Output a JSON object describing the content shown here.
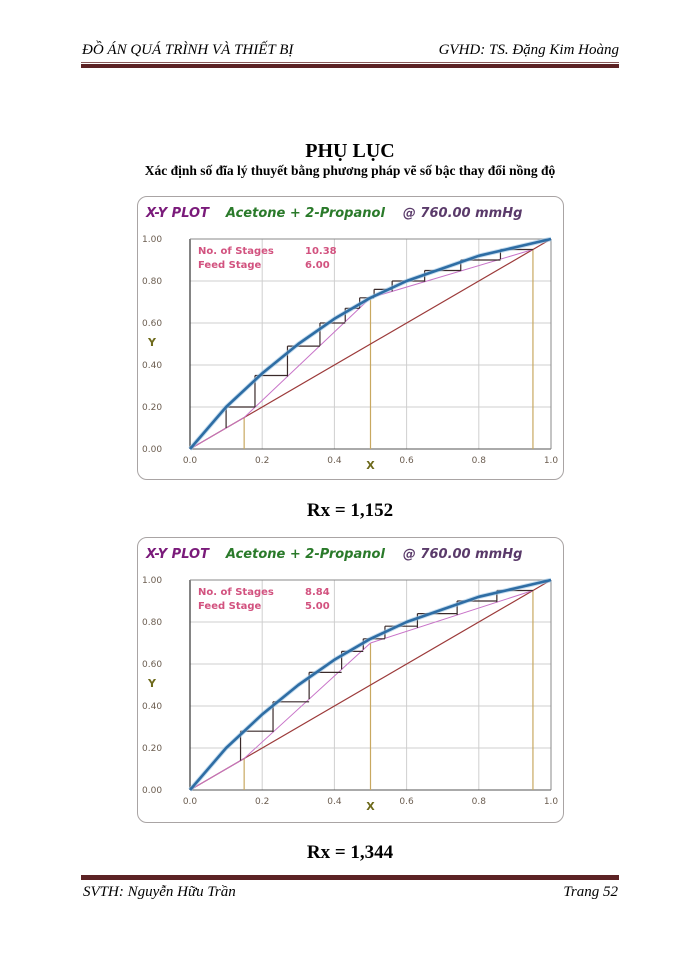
{
  "header": {
    "left": "ĐỒ ÁN QUÁ TRÌNH VÀ THIẾT BỊ",
    "right": "GVHD: TS. Đặng Kim Hoàng"
  },
  "title": "PHỤ LỤC",
  "subtitle": "Xác định số đĩa lý thuyết bằng phương pháp vẽ số bậc thay đổi nồng độ",
  "colors": {
    "equilibrium_curve": "#2e6da4",
    "diagonal": "#9c3a3a",
    "operating_lines": "#c873c8",
    "steps": "#3a2a2a",
    "feed_lines": "#c8a860",
    "title_xy": "#7a1a7a",
    "title_system": "#2a7a2a",
    "title_pressure": "#5a3a6a",
    "info_text": "#d2527f",
    "header_rule": "#5c2224"
  },
  "charts": [
    {
      "plot_label": "X-Y PLOT",
      "system": "Acetone + 2-Propanol",
      "pressure": "@ 760.00 mmHg",
      "stages_label": "No. of Stages",
      "stages_value": "10.38",
      "feed_label": "Feed Stage",
      "feed_value": "6.00",
      "caption": "Rx = 1,152"
    },
    {
      "plot_label": "X-Y PLOT",
      "system": "Acetone + 2-Propanol",
      "pressure": "@ 760.00 mmHg",
      "stages_label": "No. of Stages",
      "stages_value": "8.84",
      "feed_label": "Feed Stage",
      "feed_value": "5.00",
      "caption": "Rx = 1,344"
    }
  ],
  "chart_data": [
    {
      "type": "line",
      "title": "X-Y PLOT Acetone + 2-Propanol @ 760.00 mmHg",
      "xlabel": "X",
      "ylabel": "Y",
      "xlim": [
        0,
        1
      ],
      "ylim": [
        0,
        1
      ],
      "x_ticks": [
        "0.0",
        "0.2",
        "0.4",
        "0.6",
        "0.8",
        "1.0"
      ],
      "y_ticks": [
        "0.00",
        "0.20",
        "0.40",
        "0.60",
        "0.80",
        "1.00"
      ],
      "grid": true,
      "annotations": {
        "No. of Stages": 10.38,
        "Feed Stage": 6.0
      },
      "feed_lines_x": [
        0.15,
        0.5,
        0.95
      ],
      "series": [
        {
          "name": "Equilibrium curve",
          "x": [
            0,
            0.1,
            0.2,
            0.3,
            0.4,
            0.5,
            0.6,
            0.7,
            0.8,
            0.9,
            1.0
          ],
          "y": [
            0,
            0.2,
            0.36,
            0.5,
            0.62,
            0.72,
            0.8,
            0.86,
            0.92,
            0.96,
            1.0
          ]
        },
        {
          "name": "Diagonal y=x",
          "x": [
            0,
            1
          ],
          "y": [
            0,
            1
          ]
        },
        {
          "name": "Stripping line",
          "x": [
            0.15,
            0.5
          ],
          "y": [
            0.15,
            0.72
          ]
        },
        {
          "name": "Rectifying line",
          "x": [
            0.5,
            0.95
          ],
          "y": [
            0.72,
            0.95
          ]
        },
        {
          "name": "Stages",
          "x": [
            0.95,
            0.86,
            0.75,
            0.65,
            0.56,
            0.51,
            0.47,
            0.43,
            0.36,
            0.27,
            0.18,
            0.1
          ],
          "y": [
            0.95,
            0.95,
            0.9,
            0.85,
            0.8,
            0.76,
            0.72,
            0.67,
            0.6,
            0.49,
            0.35,
            0.2
          ]
        }
      ]
    },
    {
      "type": "line",
      "title": "X-Y PLOT Acetone + 2-Propanol @ 760.00 mmHg",
      "xlabel": "X",
      "ylabel": "Y",
      "xlim": [
        0,
        1
      ],
      "ylim": [
        0,
        1
      ],
      "x_ticks": [
        "0.0",
        "0.2",
        "0.4",
        "0.6",
        "0.8",
        "1.0"
      ],
      "y_ticks": [
        "0.00",
        "0.20",
        "0.40",
        "0.60",
        "0.80",
        "1.00"
      ],
      "grid": true,
      "annotations": {
        "No. of Stages": 8.84,
        "Feed Stage": 5.0
      },
      "feed_lines_x": [
        0.15,
        0.5,
        0.95
      ],
      "series": [
        {
          "name": "Equilibrium curve",
          "x": [
            0,
            0.1,
            0.2,
            0.3,
            0.4,
            0.5,
            0.6,
            0.7,
            0.8,
            0.9,
            1.0
          ],
          "y": [
            0,
            0.2,
            0.36,
            0.5,
            0.62,
            0.72,
            0.8,
            0.86,
            0.92,
            0.96,
            1.0
          ]
        },
        {
          "name": "Diagonal y=x",
          "x": [
            0,
            1
          ],
          "y": [
            0,
            1
          ]
        },
        {
          "name": "Stripping line",
          "x": [
            0.15,
            0.5
          ],
          "y": [
            0.15,
            0.7
          ]
        },
        {
          "name": "Rectifying line",
          "x": [
            0.5,
            0.95
          ],
          "y": [
            0.7,
            0.95
          ]
        },
        {
          "name": "Stages",
          "x": [
            0.95,
            0.85,
            0.74,
            0.63,
            0.54,
            0.48,
            0.42,
            0.33,
            0.23,
            0.14
          ],
          "y": [
            0.95,
            0.95,
            0.9,
            0.84,
            0.78,
            0.72,
            0.66,
            0.56,
            0.42,
            0.28
          ]
        }
      ]
    }
  ],
  "footer": {
    "left": "SVTH: Nguyễn Hữu Trần",
    "right": "Trang 52"
  }
}
